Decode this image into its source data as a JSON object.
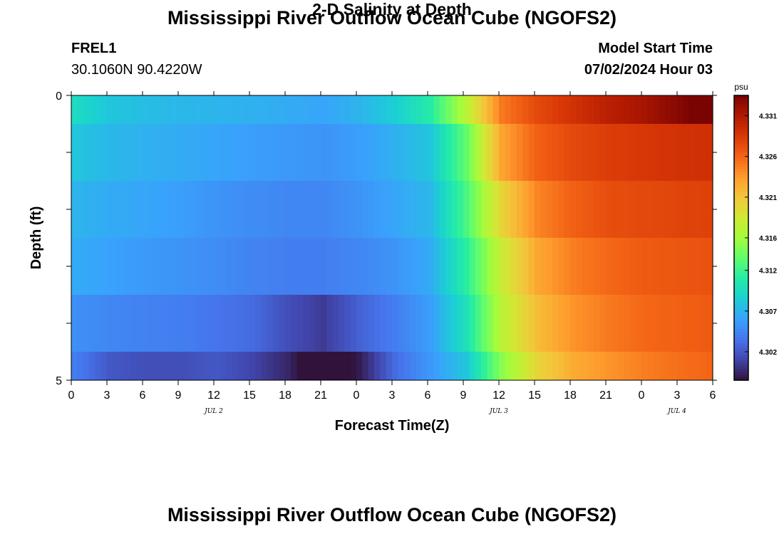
{
  "page": {
    "title": "Mississippi River Outflow Ocean Cube (NGOFS2)",
    "station_id": "FREL1",
    "station_coords": "30.1060N  90.4220W",
    "subtitle": "2-D Salinity at Depth",
    "model_start_label": "Model Start Time",
    "model_start_value": "07/02/2024 Hour 03"
  },
  "chart_data": {
    "type": "heatmap",
    "title": "2-D Salinity at Depth",
    "xlabel": "Forecast Time(Z)",
    "ylabel": "Depth (ft)",
    "x_tick_labels": [
      "0",
      "3",
      "6",
      "9",
      "12",
      "15",
      "18",
      "21",
      "0",
      "3",
      "6",
      "9",
      "12",
      "15",
      "18",
      "21",
      "0",
      "3",
      "6"
    ],
    "date_labels": [
      {
        "label": "JUL 2",
        "at_tick": 4
      },
      {
        "label": "JUL 3",
        "at_tick": 12
      },
      {
        "label": "JUL 4",
        "at_tick": 17
      }
    ],
    "y_tick_labels": [
      "0",
      "5"
    ],
    "ylim": [
      0,
      5
    ],
    "colorbar": {
      "unit": "psu",
      "ticks": [
        "4.331",
        "4.326",
        "4.321",
        "4.316",
        "4.312",
        "4.307",
        "4.302"
      ],
      "range": [
        4.2985,
        4.3335
      ],
      "colors": [
        "#30123b",
        "#4145ab",
        "#4675ed",
        "#39a2fc",
        "#1bcfd4",
        "#24eca6",
        "#61fc6c",
        "#a4fc3b",
        "#d1e834",
        "#f3c63a",
        "#fe9b2d",
        "#f36315",
        "#d93806",
        "#b11901",
        "#7a0402"
      ]
    },
    "grid": false,
    "series": [
      {
        "depth_layer": 1,
        "values": [
          4.3095,
          4.308,
          4.3075,
          4.3072,
          4.307,
          4.3068,
          4.3065,
          4.3062,
          4.307,
          4.3085,
          4.311,
          4.317,
          4.325,
          4.3275,
          4.329,
          4.3305,
          4.3315,
          4.333,
          4.3345
        ]
      },
      {
        "depth_layer": 2,
        "values": [
          4.308,
          4.3072,
          4.3068,
          4.3065,
          4.3062,
          4.3058,
          4.3055,
          4.3052,
          4.3058,
          4.3068,
          4.308,
          4.3135,
          4.323,
          4.3262,
          4.3275,
          4.3282,
          4.3286,
          4.329,
          4.3292
        ]
      },
      {
        "depth_layer": 3,
        "values": [
          4.307,
          4.3065,
          4.3062,
          4.3058,
          4.3052,
          4.3048,
          4.3045,
          4.3045,
          4.3052,
          4.3062,
          4.3072,
          4.3125,
          4.32,
          4.3245,
          4.3262,
          4.3272,
          4.3275,
          4.3278,
          4.328
        ]
      },
      {
        "depth_layer": 4,
        "values": [
          4.3065,
          4.306,
          4.3055,
          4.3052,
          4.3048,
          4.3043,
          4.304,
          4.304,
          4.3045,
          4.3052,
          4.3065,
          4.3112,
          4.318,
          4.3228,
          4.3248,
          4.3258,
          4.3265,
          4.3268,
          4.327
        ]
      },
      {
        "depth_layer": 5,
        "values": [
          4.305,
          4.3045,
          4.3042,
          4.304,
          4.3035,
          4.303,
          4.3015,
          4.3005,
          4.3025,
          4.304,
          4.3058,
          4.31,
          4.3172,
          4.3215,
          4.3238,
          4.325,
          4.3258,
          4.3262,
          4.3266
        ]
      },
      {
        "depth_layer": 6,
        "values": [
          4.304,
          4.302,
          4.3015,
          4.3015,
          4.302,
          4.301,
          4.2995,
          4.2965,
          4.299,
          4.303,
          4.3055,
          4.308,
          4.315,
          4.32,
          4.3225,
          4.3238,
          4.3248,
          4.3255,
          4.326
        ]
      }
    ]
  }
}
